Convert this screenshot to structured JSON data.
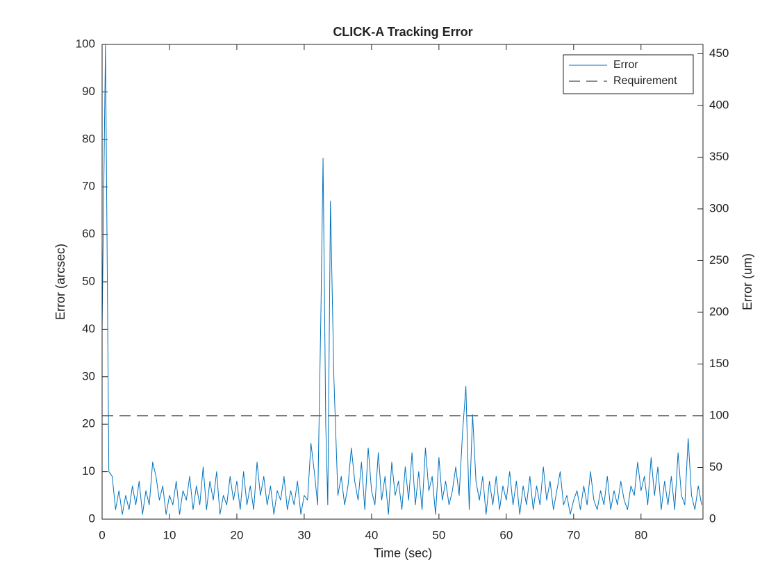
{
  "chart_data": {
    "type": "line",
    "title": "CLICK-A Tracking Error",
    "xlabel": "Time (sec)",
    "ylabel": "Error (arcsec)",
    "y2label": "Error (um)",
    "xlim": [
      0,
      89.2
    ],
    "xticks": [
      0,
      10,
      20,
      30,
      40,
      50,
      60,
      70,
      80
    ],
    "ylim": [
      0,
      100
    ],
    "yticks": [
      0,
      10,
      20,
      30,
      40,
      50,
      60,
      70,
      80,
      90,
      100
    ],
    "y2lim": [
      0,
      459
    ],
    "y2ticks": [
      0,
      50,
      100,
      150,
      200,
      250,
      300,
      350,
      400,
      450
    ],
    "legend": "upper right",
    "series": [
      {
        "name": "Error",
        "color": "#0072bd",
        "linestyle": "solid",
        "x": [
          0,
          0.5,
          1,
          1.5,
          2,
          2.5,
          3,
          3.5,
          4,
          4.5,
          5,
          5.5,
          6,
          6.5,
          7,
          7.5,
          8,
          8.5,
          9,
          9.5,
          10,
          10.5,
          11,
          11.5,
          12,
          12.5,
          13,
          13.5,
          14,
          14.5,
          15,
          15.5,
          16,
          16.5,
          17,
          17.5,
          18,
          18.5,
          19,
          19.5,
          20,
          20.5,
          21,
          21.5,
          22,
          22.5,
          23,
          23.5,
          24,
          24.5,
          25,
          25.5,
          26,
          26.5,
          27,
          27.5,
          28,
          28.5,
          29,
          29.5,
          30,
          30.5,
          31,
          31.5,
          32,
          32.5,
          32.8,
          33.2,
          33.5,
          33.9,
          34.4,
          35,
          35.5,
          36,
          36.5,
          37,
          37.5,
          38,
          38.5,
          39,
          39.5,
          40,
          40.5,
          41,
          41.5,
          42,
          42.5,
          43,
          43.5,
          44,
          44.5,
          45,
          45.5,
          46,
          46.5,
          47,
          47.5,
          48,
          48.5,
          49,
          49.5,
          50,
          50.5,
          51,
          51.5,
          52,
          52.5,
          53,
          53.5,
          54,
          54.5,
          55,
          55.5,
          56,
          56.5,
          57,
          57.5,
          58,
          58.5,
          59,
          59.5,
          60,
          60.5,
          61,
          61.5,
          62,
          62.5,
          63,
          63.5,
          64,
          64.5,
          65,
          65.5,
          66,
          66.5,
          67,
          67.5,
          68,
          68.5,
          69,
          69.5,
          70,
          70.5,
          71,
          71.5,
          72,
          72.5,
          73,
          73.5,
          74,
          74.5,
          75,
          75.5,
          76,
          76.5,
          77,
          77.5,
          78,
          78.5,
          79,
          79.5,
          80,
          80.5,
          81,
          81.5,
          82,
          82.5,
          83,
          83.5,
          84,
          84.5,
          85,
          85.5,
          86,
          86.5,
          87,
          87.5,
          88,
          88.5,
          89
        ],
        "values": [
          40,
          100,
          10,
          9,
          2,
          6,
          1,
          5,
          2,
          7,
          3,
          8,
          1,
          6,
          3,
          12,
          9,
          4,
          7,
          1,
          5,
          3,
          8,
          1,
          6,
          4,
          9,
          2,
          7,
          3,
          11,
          2,
          8,
          4,
          10,
          1,
          5,
          3,
          9,
          4,
          8,
          2,
          10,
          3,
          7,
          2,
          12,
          5,
          9,
          3,
          7,
          1,
          6,
          4,
          9,
          2,
          6,
          3,
          8,
          1,
          5,
          4,
          16,
          10,
          3,
          45,
          76,
          20,
          3,
          67,
          30,
          5,
          9,
          3,
          7,
          15,
          8,
          4,
          12,
          2,
          15,
          6,
          3,
          14,
          4,
          9,
          1,
          12,
          5,
          8,
          2,
          11,
          4,
          14,
          3,
          10,
          2,
          15,
          6,
          9,
          1,
          13,
          4,
          8,
          3,
          6,
          11,
          5,
          18,
          28,
          2,
          22,
          8,
          4,
          9,
          1,
          8,
          3,
          9,
          2,
          7,
          4,
          10,
          3,
          8,
          1,
          7,
          3,
          9,
          2,
          7,
          3,
          11,
          4,
          8,
          2,
          6,
          10,
          3,
          5,
          1,
          4,
          6,
          2,
          7,
          3,
          10,
          4,
          2,
          6,
          3,
          9,
          2,
          6,
          3,
          8,
          4,
          2,
          7,
          5,
          12,
          6,
          9,
          3,
          13,
          5,
          11,
          2,
          8,
          3,
          9,
          2,
          14,
          5,
          3,
          17,
          5,
          2,
          7,
          3
        ]
      },
      {
        "name": "Requirement",
        "color": "#666666",
        "linestyle": "dashed",
        "axis": "y2",
        "x": [
          0,
          89.2
        ],
        "values": [
          100,
          100
        ]
      }
    ]
  }
}
